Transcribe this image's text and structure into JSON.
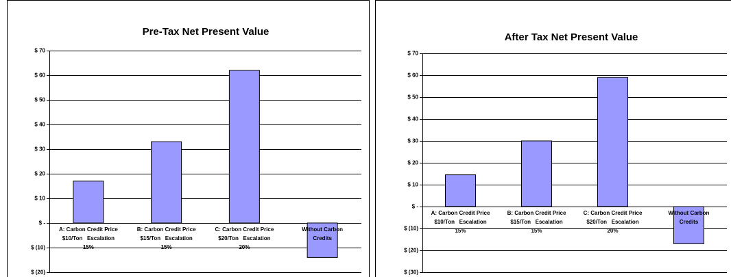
{
  "chart_data": [
    {
      "type": "bar",
      "title": "Pre-Tax Net Present Value",
      "categories": [
        [
          "A: Carbon Credit Price",
          "$10/Ton   Escalation",
          "15%"
        ],
        [
          "B: Carbon Credit Price",
          "$15/Ton   Escalation",
          "15%"
        ],
        [
          "C: Carbon Credit Price",
          "$20/Ton   Escalation",
          "20%"
        ],
        [
          "Without Carbon",
          "Credits"
        ]
      ],
      "values": [
        17,
        33,
        62,
        -14
      ],
      "color": "#9999ff",
      "ylim": [
        -20,
        70
      ],
      "yticks": [
        {
          "value": -20,
          "label": "$ (20)"
        },
        {
          "value": -10,
          "label": "$ (10)"
        },
        {
          "value": 0,
          "label": "$ -"
        },
        {
          "value": 10,
          "label": "$ 10"
        },
        {
          "value": 20,
          "label": "$ 20"
        },
        {
          "value": 30,
          "label": "$ 30"
        },
        {
          "value": 40,
          "label": "$ 40"
        },
        {
          "value": 50,
          "label": "$ 50"
        },
        {
          "value": 60,
          "label": "$ 60"
        },
        {
          "value": 70,
          "label": "$ 70"
        }
      ],
      "grid": true,
      "negative_tick_color": "#ff0000"
    },
    {
      "type": "bar",
      "title": "After Tax Net Present Value",
      "categories": [
        [
          "A: Carbon Credit Price",
          "$10/Ton   Escalation",
          "15%"
        ],
        [
          "B: Carbon Credit Price",
          "$15/Ton   Escalation",
          "15%"
        ],
        [
          "C: Carbon Credit Price",
          "$20/Ton   Escalation",
          "20%"
        ],
        [
          "Without Carbon",
          "Credits"
        ]
      ],
      "values": [
        14.5,
        30,
        59,
        -17
      ],
      "color": "#9999ff",
      "ylim": [
        -30,
        70
      ],
      "yticks": [
        {
          "value": -30,
          "label": "$ (30)"
        },
        {
          "value": -20,
          "label": "$ (20)"
        },
        {
          "value": -10,
          "label": "$ (10)"
        },
        {
          "value": 0,
          "label": "$ -"
        },
        {
          "value": 10,
          "label": "$ 10"
        },
        {
          "value": 20,
          "label": "$ 20"
        },
        {
          "value": 30,
          "label": "$ 30"
        },
        {
          "value": 40,
          "label": "$ 40"
        },
        {
          "value": 50,
          "label": "$ 50"
        },
        {
          "value": 60,
          "label": "$ 60"
        },
        {
          "value": 70,
          "label": "$ 70"
        }
      ],
      "grid": true,
      "negative_tick_color": "#ff0000"
    }
  ]
}
